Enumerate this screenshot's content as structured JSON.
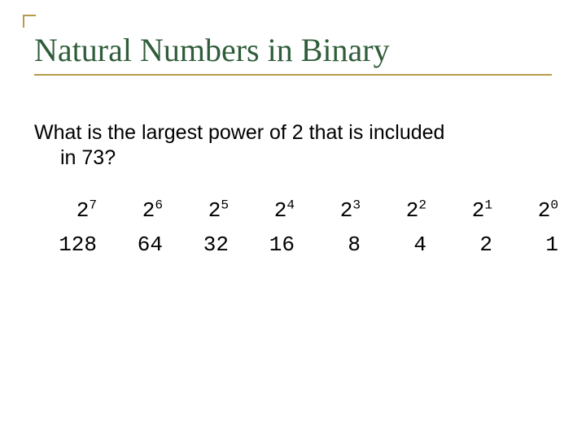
{
  "title": "Natural Numbers in Binary",
  "question": {
    "line1": "What is the largest power of 2 that is included",
    "line2": "in 73?"
  },
  "powers_table": {
    "type": "table",
    "columns": 8,
    "font_family": "Courier New",
    "font_size_pt": 20,
    "text_color": "#000000",
    "row1_base": "2",
    "row1_exponents": [
      "7",
      "6",
      "5",
      "4",
      "3",
      "2",
      "1",
      "0"
    ],
    "row2_values": [
      "128",
      "64",
      "32",
      "16",
      "8",
      "4",
      "2",
      "1"
    ]
  },
  "colors": {
    "title_color": "#2f5d3a",
    "accent_color": "#b59b4a",
    "background": "#ffffff",
    "body_text": "#000000"
  }
}
